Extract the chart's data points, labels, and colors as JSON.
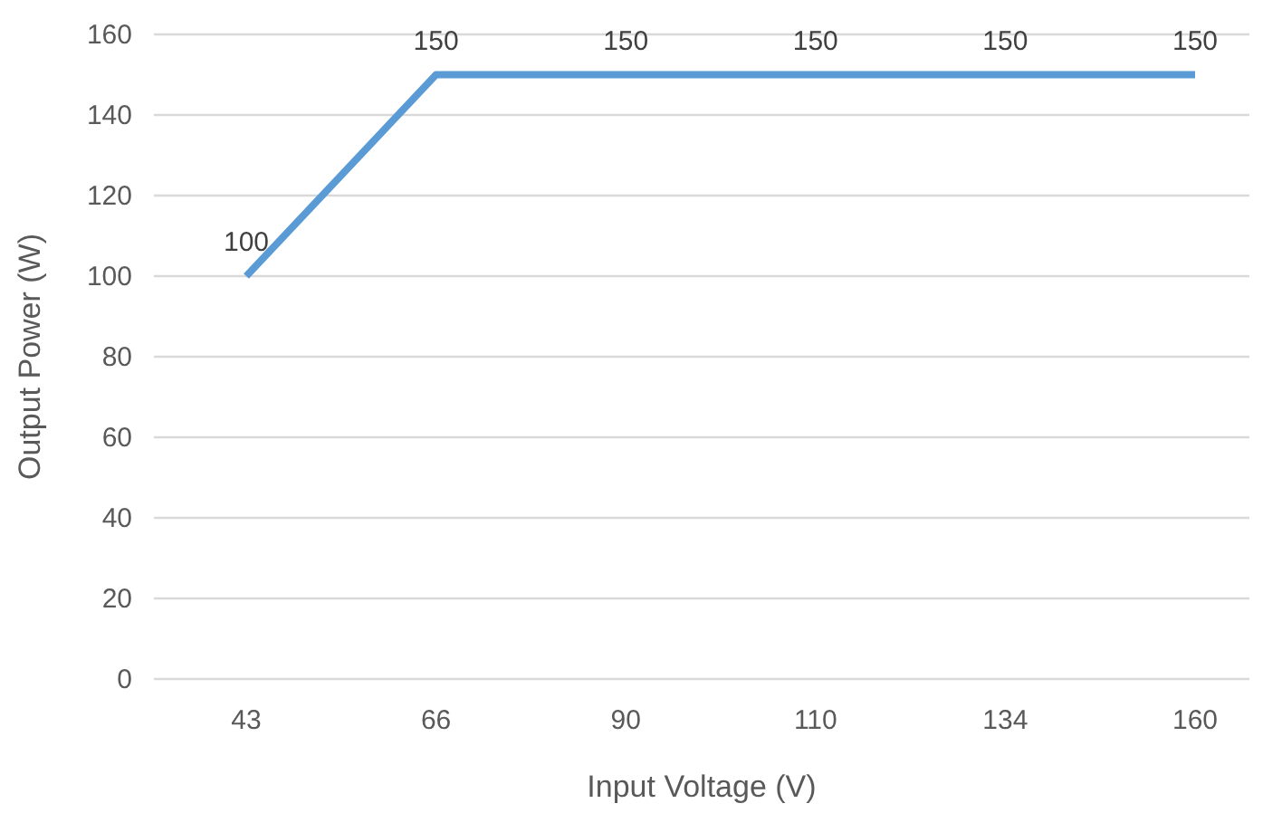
{
  "chart_data": {
    "type": "line",
    "xlabel": "Input Voltage (V)",
    "ylabel": "Output Power (W)",
    "categories": [
      "43",
      "66",
      "90",
      "110",
      "134",
      "160"
    ],
    "series": [
      {
        "color": "#5b9bd5",
        "values": [
          100,
          150,
          150,
          150,
          150,
          150
        ]
      }
    ],
    "ylim": [
      0,
      160
    ],
    "yticks": [
      0,
      20,
      40,
      60,
      80,
      100,
      120,
      140,
      160
    ],
    "grid": "y",
    "data_labels": true,
    "marker": "none",
    "line_style": "solid"
  }
}
